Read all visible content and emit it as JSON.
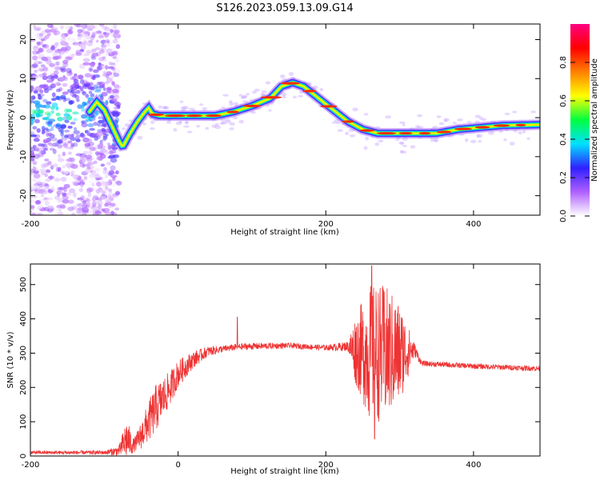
{
  "title": "S126.2023.059.13.09.G14",
  "chart_data": [
    {
      "type": "heatmap",
      "xlabel": "Height of straight line (km)",
      "ylabel": "Frequency (Hz)",
      "xlim": [
        -200,
        490
      ],
      "ylim": [
        -25,
        24
      ],
      "x_ticks": [
        -200,
        0,
        200,
        400
      ],
      "y_ticks": [
        -20,
        -10,
        0,
        10,
        20
      ],
      "grid": false,
      "ridge": {
        "x": [
          -200,
          -150,
          -120,
          -110,
          -100,
          -90,
          -80,
          -75,
          -65,
          -55,
          -45,
          -40,
          -35,
          -25,
          0,
          50,
          75,
          100,
          125,
          140,
          155,
          170,
          190,
          210,
          230,
          250,
          270,
          300,
          320,
          350,
          380,
          410,
          440,
          490
        ],
        "y": [
          1,
          1,
          1.5,
          4,
          2,
          -2,
          -6,
          -7.5,
          -4,
          -1,
          1.5,
          2.5,
          1,
          0.5,
          0.5,
          0.5,
          1.5,
          3,
          5,
          8,
          9,
          8,
          5,
          2,
          -1,
          -3,
          -4,
          -4,
          -4,
          -4,
          -3,
          -2.5,
          -2,
          -1.8
        ]
      },
      "noise_region": [
        -200,
        -90
      ],
      "colorbar": {
        "label": "Normalized spectral amplitude",
        "range": [
          0,
          1
        ],
        "ticks": [
          0.0,
          0.2,
          0.4,
          0.6,
          0.8
        ],
        "colors": [
          "#ffffff",
          "#b060ff",
          "#3020ff",
          "#00e0ff",
          "#00ff40",
          "#ffff00",
          "#ff8000",
          "#ff0000",
          "#ff0080"
        ]
      }
    },
    {
      "type": "line",
      "xlabel": "Height of straight line (km)",
      "ylabel": "SNR (10 * v/v)",
      "xlim": [
        -200,
        490
      ],
      "ylim": [
        0,
        560
      ],
      "x_ticks": [
        -200,
        0,
        200,
        400
      ],
      "y_ticks": [
        0,
        100,
        200,
        300,
        400,
        500
      ],
      "color": "#ee3333",
      "envelope": {
        "x": [
          -200,
          -100,
          -80,
          -70,
          -60,
          -50,
          -40,
          -30,
          -20,
          -10,
          0,
          20,
          40,
          60,
          80,
          100,
          150,
          200,
          230,
          240,
          260,
          280,
          300,
          320,
          330,
          400,
          490
        ],
        "base": [
          10,
          10,
          15,
          50,
          30,
          60,
          100,
          140,
          170,
          200,
          240,
          280,
          305,
          312,
          318,
          320,
          322,
          316,
          320,
          310,
          300,
          300,
          300,
          310,
          270,
          262,
          255
        ],
        "amplitude": [
          5,
          6,
          15,
          60,
          20,
          40,
          60,
          70,
          60,
          50,
          40,
          25,
          15,
          10,
          10,
          10,
          8,
          8,
          15,
          100,
          200,
          200,
          150,
          20,
          8,
          8,
          8
        ]
      },
      "spikes": [
        {
          "x": 80,
          "y": 405
        },
        {
          "x": 262,
          "y": 555
        },
        {
          "x": 266,
          "y": 50
        }
      ]
    }
  ]
}
